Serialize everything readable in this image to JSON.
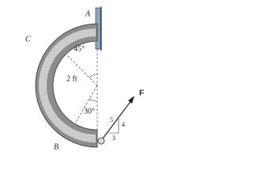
{
  "points": {
    "A": "A",
    "B": "B",
    "C": "C"
  },
  "angles": {
    "upper": "45°",
    "lower": "30°"
  },
  "dimension": "2 ft",
  "force": "F",
  "slope": {
    "hyp": "5",
    "rise": "4",
    "run": "3"
  }
}
